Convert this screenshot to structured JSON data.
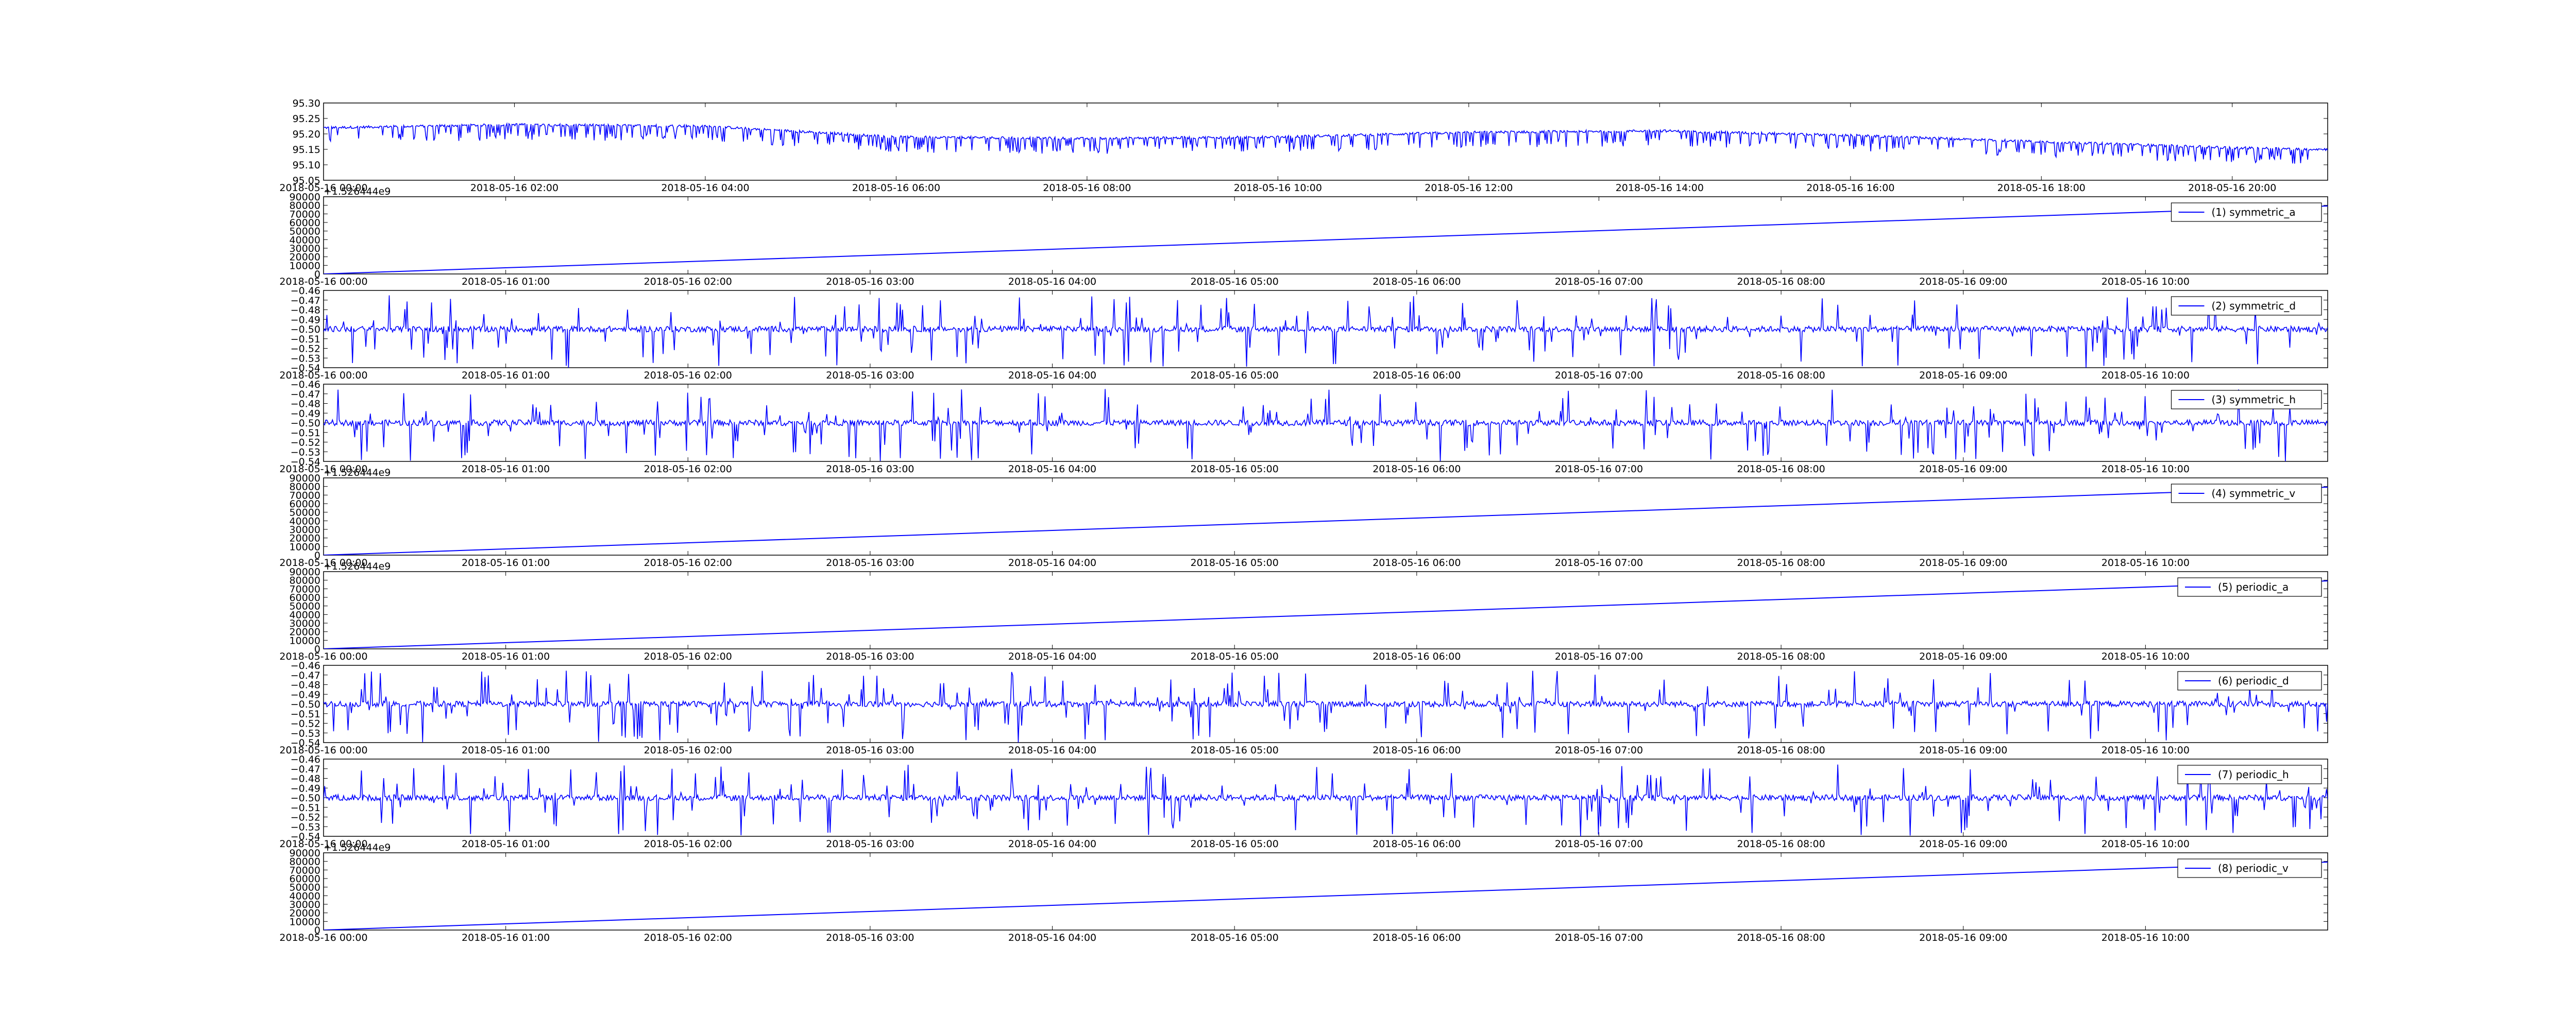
{
  "chart_data": [
    {
      "type": "line",
      "series": [
        {
          "name": "",
          "color": "#0000ff",
          "style": "dense-noisy-with-spikes"
        }
      ],
      "x": [
        "2018-05-16 00:00",
        "2018-05-16 21:00"
      ],
      "xticks": [
        "2018-05-16 00:00",
        "2018-05-16 02:00",
        "2018-05-16 04:00",
        "2018-05-16 06:00",
        "2018-05-16 08:00",
        "2018-05-16 10:00",
        "2018-05-16 12:00",
        "2018-05-16 14:00",
        "2018-05-16 16:00",
        "2018-05-16 18:00",
        "2018-05-16 20:00"
      ],
      "yticks": [
        "95.05",
        "95.10",
        "95.15",
        "95.20",
        "95.25",
        "95.30"
      ],
      "ylim": [
        95.05,
        95.3
      ],
      "offset_label": "",
      "baseline_trend": [
        {
          "x": "2018-05-16 00:00",
          "y": 95.22
        },
        {
          "x": "2018-05-16 02:00",
          "y": 95.23
        },
        {
          "x": "2018-05-16 04:00",
          "y": 95.225
        },
        {
          "x": "2018-05-16 06:00",
          "y": 95.19
        },
        {
          "x": "2018-05-16 08:00",
          "y": 95.185
        },
        {
          "x": "2018-05-16 10:00",
          "y": 95.19
        },
        {
          "x": "2018-05-16 12:00",
          "y": 95.205
        },
        {
          "x": "2018-05-16 14:00",
          "y": 95.21
        },
        {
          "x": "2018-05-16 16:00",
          "y": 95.195
        },
        {
          "x": "2018-05-16 18:00",
          "y": 95.175
        },
        {
          "x": "2018-05-16 20:00",
          "y": 95.155
        },
        {
          "x": "2018-05-16 21:00",
          "y": 95.15
        }
      ],
      "spike_depth": 0.05,
      "legend": "",
      "grid": false
    },
    {
      "type": "line",
      "series": [
        {
          "name": "(1) symmetric_a",
          "color": "#0000ff",
          "style": "linear"
        }
      ],
      "x": [
        "2018-05-16 00:00",
        "2018-05-16 11:00"
      ],
      "xticks": [
        "2018-05-16 00:00",
        "2018-05-16 01:00",
        "2018-05-16 02:00",
        "2018-05-16 03:00",
        "2018-05-16 04:00",
        "2018-05-16 05:00",
        "2018-05-16 06:00",
        "2018-05-16 07:00",
        "2018-05-16 08:00",
        "2018-05-16 09:00",
        "2018-05-16 10:00"
      ],
      "yticks": [
        "0",
        "10000",
        "20000",
        "30000",
        "40000",
        "50000",
        "60000",
        "70000",
        "80000",
        "90000"
      ],
      "ylim": [
        0,
        90000
      ],
      "offset_label": "+1.526444e9",
      "values_start": 0,
      "values_end": 79200,
      "legend": "top-right",
      "grid": false
    },
    {
      "type": "line",
      "series": [
        {
          "name": "(2) symmetric_d",
          "color": "#0000ff",
          "style": "noise-with-spikes"
        }
      ],
      "x": [
        "2018-05-16 00:00",
        "2018-05-16 11:00"
      ],
      "xticks": [
        "2018-05-16 00:00",
        "2018-05-16 01:00",
        "2018-05-16 02:00",
        "2018-05-16 03:00",
        "2018-05-16 04:00",
        "2018-05-16 05:00",
        "2018-05-16 06:00",
        "2018-05-16 07:00",
        "2018-05-16 08:00",
        "2018-05-16 09:00",
        "2018-05-16 10:00"
      ],
      "yticks": [
        "−0.54",
        "−0.53",
        "−0.52",
        "−0.51",
        "−0.50",
        "−0.49",
        "−0.48",
        "−0.47",
        "−0.46"
      ],
      "ylim": [
        -0.54,
        -0.46
      ],
      "offset_label": "",
      "baseline": -0.5,
      "legend": "top-right",
      "grid": false
    },
    {
      "type": "line",
      "series": [
        {
          "name": "(3) symmetric_h",
          "color": "#0000ff",
          "style": "noise-with-spikes"
        }
      ],
      "x": [
        "2018-05-16 00:00",
        "2018-05-16 11:00"
      ],
      "xticks": [
        "2018-05-16 00:00",
        "2018-05-16 01:00",
        "2018-05-16 02:00",
        "2018-05-16 03:00",
        "2018-05-16 04:00",
        "2018-05-16 05:00",
        "2018-05-16 06:00",
        "2018-05-16 07:00",
        "2018-05-16 08:00",
        "2018-05-16 09:00",
        "2018-05-16 10:00"
      ],
      "yticks": [
        "−0.54",
        "−0.53",
        "−0.52",
        "−0.51",
        "−0.50",
        "−0.49",
        "−0.48",
        "−0.47",
        "−0.46"
      ],
      "ylim": [
        -0.54,
        -0.46
      ],
      "offset_label": "",
      "baseline": -0.5,
      "legend": "top-right",
      "grid": false
    },
    {
      "type": "line",
      "series": [
        {
          "name": "(4) symmetric_v",
          "color": "#0000ff",
          "style": "linear"
        }
      ],
      "x": [
        "2018-05-16 00:00",
        "2018-05-16 11:00"
      ],
      "xticks": [
        "2018-05-16 00:00",
        "2018-05-16 01:00",
        "2018-05-16 02:00",
        "2018-05-16 03:00",
        "2018-05-16 04:00",
        "2018-05-16 05:00",
        "2018-05-16 06:00",
        "2018-05-16 07:00",
        "2018-05-16 08:00",
        "2018-05-16 09:00",
        "2018-05-16 10:00"
      ],
      "yticks": [
        "0",
        "10000",
        "20000",
        "30000",
        "40000",
        "50000",
        "60000",
        "70000",
        "80000",
        "90000"
      ],
      "ylim": [
        0,
        90000
      ],
      "offset_label": "+1.526444e9",
      "values_start": 0,
      "values_end": 79200,
      "legend": "top-right",
      "grid": false
    },
    {
      "type": "line",
      "series": [
        {
          "name": "(5) periodic_a",
          "color": "#0000ff",
          "style": "linear"
        }
      ],
      "x": [
        "2018-05-16 00:00",
        "2018-05-16 11:00"
      ],
      "xticks": [
        "2018-05-16 00:00",
        "2018-05-16 01:00",
        "2018-05-16 02:00",
        "2018-05-16 03:00",
        "2018-05-16 04:00",
        "2018-05-16 05:00",
        "2018-05-16 06:00",
        "2018-05-16 07:00",
        "2018-05-16 08:00",
        "2018-05-16 09:00",
        "2018-05-16 10:00"
      ],
      "yticks": [
        "0",
        "10000",
        "20000",
        "30000",
        "40000",
        "50000",
        "60000",
        "70000",
        "80000",
        "90000"
      ],
      "ylim": [
        0,
        90000
      ],
      "offset_label": "+1.526444e9",
      "values_start": 0,
      "values_end": 79200,
      "legend": "top-right",
      "grid": false
    },
    {
      "type": "line",
      "series": [
        {
          "name": "(6) periodic_d",
          "color": "#0000ff",
          "style": "noise-with-spikes"
        }
      ],
      "x": [
        "2018-05-16 00:00",
        "2018-05-16 11:00"
      ],
      "xticks": [
        "2018-05-16 00:00",
        "2018-05-16 01:00",
        "2018-05-16 02:00",
        "2018-05-16 03:00",
        "2018-05-16 04:00",
        "2018-05-16 05:00",
        "2018-05-16 06:00",
        "2018-05-16 07:00",
        "2018-05-16 08:00",
        "2018-05-16 09:00",
        "2018-05-16 10:00"
      ],
      "yticks": [
        "−0.54",
        "−0.53",
        "−0.52",
        "−0.51",
        "−0.50",
        "−0.49",
        "−0.48",
        "−0.47",
        "−0.46"
      ],
      "ylim": [
        -0.54,
        -0.46
      ],
      "offset_label": "",
      "baseline": -0.5,
      "legend": "top-right",
      "grid": false
    },
    {
      "type": "line",
      "series": [
        {
          "name": "(7) periodic_h",
          "color": "#0000ff",
          "style": "noise-with-spikes"
        }
      ],
      "x": [
        "2018-05-16 00:00",
        "2018-05-16 11:00"
      ],
      "xticks": [
        "2018-05-16 00:00",
        "2018-05-16 01:00",
        "2018-05-16 02:00",
        "2018-05-16 03:00",
        "2018-05-16 04:00",
        "2018-05-16 05:00",
        "2018-05-16 06:00",
        "2018-05-16 07:00",
        "2018-05-16 08:00",
        "2018-05-16 09:00",
        "2018-05-16 10:00"
      ],
      "yticks": [
        "−0.54",
        "−0.53",
        "−0.52",
        "−0.51",
        "−0.50",
        "−0.49",
        "−0.48",
        "−0.47",
        "−0.46"
      ],
      "ylim": [
        -0.54,
        -0.46
      ],
      "offset_label": "",
      "baseline": -0.5,
      "legend": "top-right",
      "grid": false
    },
    {
      "type": "line",
      "series": [
        {
          "name": "(8) periodic_v",
          "color": "#0000ff",
          "style": "linear"
        }
      ],
      "x": [
        "2018-05-16 00:00",
        "2018-05-16 11:00"
      ],
      "xticks": [
        "2018-05-16 00:00",
        "2018-05-16 01:00",
        "2018-05-16 02:00",
        "2018-05-16 03:00",
        "2018-05-16 04:00",
        "2018-05-16 05:00",
        "2018-05-16 06:00",
        "2018-05-16 07:00",
        "2018-05-16 08:00",
        "2018-05-16 09:00",
        "2018-05-16 10:00"
      ],
      "yticks": [
        "0",
        "10000",
        "20000",
        "30000",
        "40000",
        "50000",
        "60000",
        "70000",
        "80000",
        "90000"
      ],
      "ylim": [
        0,
        90000
      ],
      "offset_label": "+1.526444e9",
      "values_start": 0,
      "values_end": 79200,
      "legend": "top-right",
      "grid": false
    }
  ]
}
